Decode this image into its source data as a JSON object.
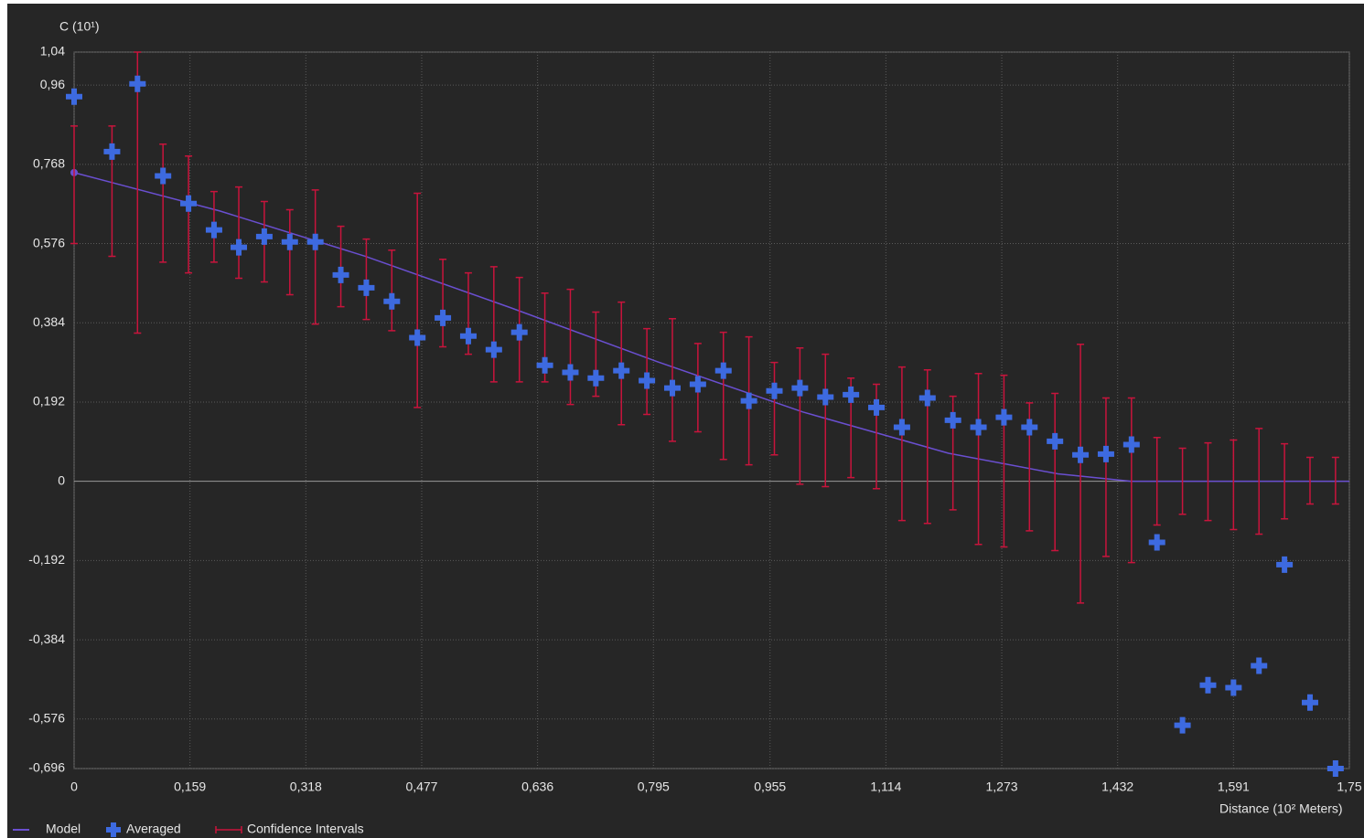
{
  "chart_data": {
    "type": "scatter",
    "y_label": "C (10¹)",
    "x_label": "Distance (10² Meters)",
    "xlim": [
      0,
      1.75
    ],
    "ylim": [
      -0.696,
      1.04
    ],
    "grid": true,
    "legend": "bottom-left",
    "xticks": [
      0,
      {
        "value": 0.159,
        "label": "0,159"
      },
      {
        "value": 0.318,
        "label": "0,318"
      },
      {
        "value": 0.477,
        "label": "0,477"
      },
      {
        "value": 0.636,
        "label": "0,636"
      },
      {
        "value": 0.795,
        "label": "0,795"
      },
      {
        "value": 0.955,
        "label": "0,955"
      },
      {
        "value": 1.114,
        "label": "1,114"
      },
      {
        "value": 1.273,
        "label": "1,273"
      },
      {
        "value": 1.432,
        "label": "1,432"
      },
      {
        "value": 1.591,
        "label": "1,591"
      },
      {
        "value": 1.75,
        "label": "1,75"
      }
    ],
    "yticks": [
      {
        "value": 1.04,
        "label": "1,04"
      },
      {
        "value": 0.96,
        "label": "0,96"
      },
      {
        "value": 0.768,
        "label": "0,768"
      },
      {
        "value": 0.576,
        "label": "0,576"
      },
      {
        "value": 0.384,
        "label": "0,384"
      },
      {
        "value": 0.192,
        "label": "0,192"
      },
      0,
      {
        "value": -0.192,
        "label": "-0,192"
      },
      {
        "value": -0.384,
        "label": "-0,384"
      },
      {
        "value": -0.576,
        "label": "-0,576"
      },
      {
        "value": -0.696,
        "label": "-0,696"
      }
    ],
    "series": [
      {
        "name": "Model",
        "color": "#6a4fd0",
        "x": [
          0,
          0.2,
          0.4,
          0.6,
          0.8,
          1.0,
          1.2,
          1.35,
          1.45,
          1.75
        ],
        "values": [
          0.748,
          0.655,
          0.545,
          0.42,
          0.29,
          0.168,
          0.068,
          0.018,
          0,
          0
        ]
      },
      {
        "name": "Averaged",
        "color": "#3d6ae0",
        "x": [
          0,
          0.052,
          0.087,
          0.122,
          0.157,
          0.192,
          0.226,
          0.261,
          0.296,
          0.331,
          0.366,
          0.401,
          0.436,
          0.471,
          0.506,
          0.541,
          0.576,
          0.611,
          0.646,
          0.681,
          0.716,
          0.751,
          0.786,
          0.821,
          0.856,
          0.891,
          0.926,
          0.961,
          0.996,
          1.031,
          1.066,
          1.101,
          1.136,
          1.171,
          1.206,
          1.241,
          1.276,
          1.311,
          1.346,
          1.381,
          1.416,
          1.451,
          1.486,
          1.521,
          1.556,
          1.591,
          1.626,
          1.661,
          1.696,
          1.731
        ],
        "values": [
          0.932,
          0.799,
          0.963,
          0.74,
          0.673,
          0.609,
          0.567,
          0.593,
          0.58,
          0.58,
          0.5,
          0.469,
          0.436,
          0.348,
          0.396,
          0.352,
          0.319,
          0.361,
          0.281,
          0.264,
          0.25,
          0.268,
          0.244,
          0.226,
          0.235,
          0.268,
          0.195,
          0.219,
          0.226,
          0.204,
          0.21,
          0.179,
          0.131,
          0.202,
          0.148,
          0.131,
          0.155,
          0.131,
          0.097,
          0.064,
          0.066,
          0.089,
          -0.148,
          -0.591,
          -0.494,
          -0.5,
          -0.447,
          -0.202,
          -0.536,
          -0.696
        ],
        "error_high": [
          0.861,
          0.861,
          1.04,
          0.817,
          0.788,
          0.702,
          0.713,
          0.678,
          0.658,
          0.706,
          0.618,
          0.587,
          0.56,
          0.698,
          0.538,
          0.505,
          0.52,
          0.494,
          0.456,
          0.465,
          0.41,
          0.434,
          0.37,
          0.394,
          0.334,
          0.361,
          0.35,
          0.288,
          0.323,
          0.308,
          0.25,
          0.235,
          0.277,
          0.27,
          0.206,
          0.261,
          0.257,
          0.19,
          0.213,
          0.332,
          0.202,
          0.202,
          0.106,
          0.08,
          0.093,
          0.1,
          0.128,
          0.091,
          0.058,
          0.058
        ],
        "error_low": [
          0.576,
          0.545,
          0.359,
          0.531,
          0.505,
          0.531,
          0.492,
          0.483,
          0.452,
          0.381,
          0.423,
          0.392,
          0.365,
          0.179,
          0.326,
          0.308,
          0.241,
          0.241,
          0.241,
          0.186,
          0.206,
          0.137,
          0.162,
          0.097,
          0.12,
          0.053,
          0.04,
          0.064,
          -0.007,
          -0.013,
          0.009,
          -0.018,
          -0.095,
          -0.102,
          -0.069,
          -0.153,
          -0.159,
          -0.12,
          -0.168,
          -0.295,
          -0.182,
          -0.197,
          -0.106,
          -0.08,
          -0.095,
          -0.117,
          -0.128,
          -0.091,
          -0.055,
          -0.055
        ]
      }
    ],
    "error_bars": {
      "name": "Confidence Intervals",
      "color": "#c8143c"
    }
  }
}
